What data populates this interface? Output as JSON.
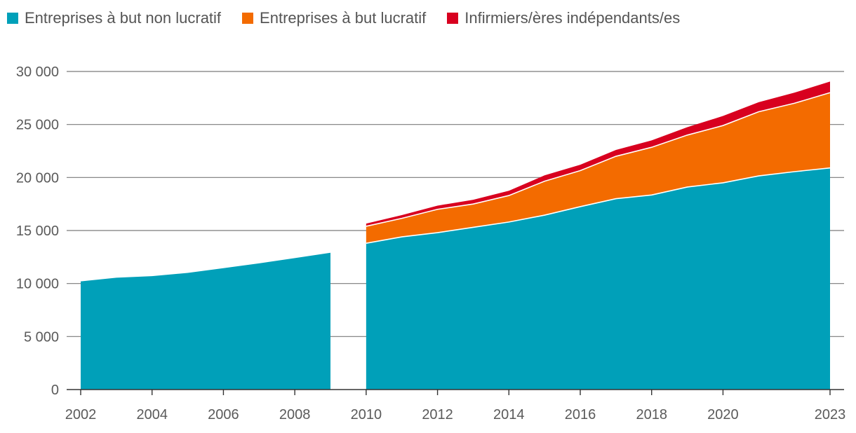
{
  "chart_data": {
    "type": "area",
    "stacked": true,
    "title": "",
    "xlabel": "",
    "ylabel": "",
    "xlim": [
      2002,
      2023
    ],
    "ylim": [
      0,
      30000
    ],
    "x_ticks": [
      2002,
      2004,
      2006,
      2008,
      2010,
      2012,
      2014,
      2016,
      2018,
      2020,
      2023
    ],
    "x_tick_labels": [
      "2002",
      "2004",
      "2006",
      "2008",
      "2010",
      "2012",
      "2014",
      "2016",
      "2018",
      "2020",
      "2023"
    ],
    "y_ticks": [
      0,
      5000,
      10000,
      15000,
      20000,
      25000,
      30000
    ],
    "y_tick_labels": [
      "0",
      "5 000",
      "10 000",
      "15 000",
      "20 000",
      "25 000",
      "30 000"
    ],
    "grid": true,
    "legend_position": "top-left",
    "segments": [
      {
        "x": [
          2002,
          2003,
          2004,
          2005,
          2006,
          2007,
          2008,
          2009
        ],
        "series": [
          {
            "name": "Entreprises à but non lucratif",
            "values": [
              10200,
              10550,
              10700,
              11000,
              11450,
              11900,
              12400,
              12900
            ]
          }
        ]
      },
      {
        "x": [
          2010,
          2011,
          2012,
          2013,
          2014,
          2015,
          2016,
          2017,
          2018,
          2019,
          2020,
          2021,
          2022,
          2023
        ],
        "series": [
          {
            "name": "Entreprises à but non lucratif",
            "values": [
              13800,
              14400,
              14800,
              15300,
              15800,
              16450,
              17250,
              18000,
              18350,
              19100,
              19500,
              20150,
              20550,
              20900
            ]
          },
          {
            "name": "Entreprises à but lucratif",
            "values": [
              1600,
              1750,
              2200,
              2200,
              2500,
              3200,
              3400,
              4000,
              4500,
              4900,
              5400,
              6050,
              6450,
              7100
            ]
          },
          {
            "name": "Infirmiers/ères indépendants/es",
            "values": [
              250,
              300,
              350,
              400,
              450,
              550,
              550,
              600,
              650,
              750,
              900,
              900,
              1000,
              1050
            ]
          }
        ]
      }
    ],
    "legend": [
      {
        "name": "Entreprises à but non lucratif",
        "color": "#00a0b9"
      },
      {
        "name": "Entreprises à but lucratif",
        "color": "#f36b00"
      },
      {
        "name": "Infirmiers/ères indépendants/es",
        "color": "#d8001f"
      }
    ]
  }
}
